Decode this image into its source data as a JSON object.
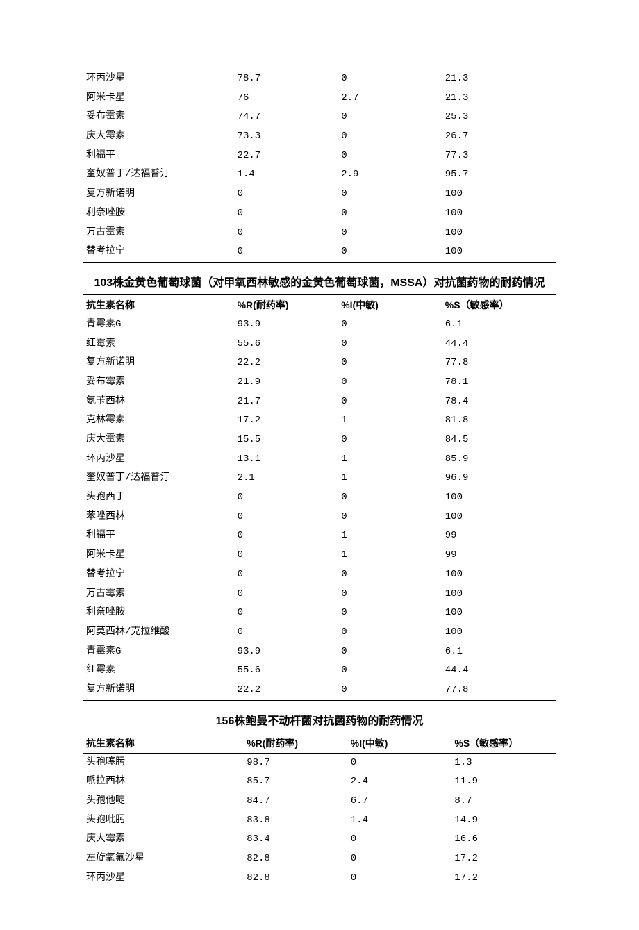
{
  "table1": {
    "rows": [
      {
        "name": "环丙沙星",
        "r": "78.7",
        "i": "0",
        "s": "21.3"
      },
      {
        "name": "阿米卡星",
        "r": "76",
        "i": "2.7",
        "s": "21.3"
      },
      {
        "name": "妥布霉素",
        "r": "74.7",
        "i": "0",
        "s": "25.3"
      },
      {
        "name": "庆大霉素",
        "r": "73.3",
        "i": "0",
        "s": "26.7"
      },
      {
        "name": "利福平",
        "r": "22.7",
        "i": "0",
        "s": "77.3"
      },
      {
        "name": "奎奴普丁/达福普汀",
        "r": "1.4",
        "i": "2.9",
        "s": "95.7"
      },
      {
        "name": "复方新诺明",
        "r": "0",
        "i": "0",
        "s": "100"
      },
      {
        "name": "利奈唑胺",
        "r": "0",
        "i": "0",
        "s": "100"
      },
      {
        "name": "万古霉素",
        "r": "0",
        "i": "0",
        "s": "100"
      },
      {
        "name": "替考拉宁",
        "r": "0",
        "i": "0",
        "s": "100"
      }
    ]
  },
  "table2": {
    "title": "103株金黄色葡萄球菌（对甲氧西林敏感的金黄色葡萄球菌，MSSA）对抗菌药物的耐药情况",
    "headers": {
      "name": "抗生素名称",
      "r": "%R(耐药率)",
      "i": "%I(中敏)",
      "s": "%S（敏感率）"
    },
    "rows": [
      {
        "name": "青霉素G",
        "r": "93.9",
        "i": "0",
        "s": "6.1"
      },
      {
        "name": "红霉素",
        "r": "55.6",
        "i": "0",
        "s": "44.4"
      },
      {
        "name": "复方新诺明",
        "r": "22.2",
        "i": "0",
        "s": "77.8"
      },
      {
        "name": "妥布霉素",
        "r": "21.9",
        "i": "0",
        "s": "78.1"
      },
      {
        "name": "氨苄西林",
        "r": "21.7",
        "i": "0",
        "s": "78.4"
      },
      {
        "name": "克林霉素",
        "r": "17.2",
        "i": "1",
        "s": "81.8"
      },
      {
        "name": "庆大霉素",
        "r": "15.5",
        "i": "0",
        "s": "84.5"
      },
      {
        "name": "环丙沙星",
        "r": "13.1",
        "i": "1",
        "s": "85.9"
      },
      {
        "name": "奎奴普丁/达福普汀",
        "r": "2.1",
        "i": "1",
        "s": "96.9"
      },
      {
        "name": "头孢西丁",
        "r": "0",
        "i": "0",
        "s": "100"
      },
      {
        "name": "苯唑西林",
        "r": "0",
        "i": "0",
        "s": "100"
      },
      {
        "name": "利福平",
        "r": "0",
        "i": "1",
        "s": "99"
      },
      {
        "name": "阿米卡星",
        "r": "0",
        "i": "1",
        "s": "99"
      },
      {
        "name": "替考拉宁",
        "r": "0",
        "i": "0",
        "s": "100"
      },
      {
        "name": "万古霉素",
        "r": "0",
        "i": "0",
        "s": "100"
      },
      {
        "name": "利奈唑胺",
        "r": "0",
        "i": "0",
        "s": "100"
      },
      {
        "name": "阿莫西林/克拉维酸",
        "r": "0",
        "i": "0",
        "s": "100"
      },
      {
        "name": "青霉素G",
        "r": "93.9",
        "i": "0",
        "s": "6.1"
      },
      {
        "name": "红霉素",
        "r": "55.6",
        "i": "0",
        "s": "44.4"
      },
      {
        "name": "复方新诺明",
        "r": "22.2",
        "i": "0",
        "s": "77.8"
      }
    ]
  },
  "table3": {
    "title": "156株鲍曼不动杆菌对抗菌药物的耐药情况",
    "headers": {
      "name": "抗生素名称",
      "r": "%R(耐药率)",
      "i": "%I(中敏)",
      "s": "%S（敏感率）"
    },
    "rows": [
      {
        "name": "头孢噻肟",
        "r": "98.7",
        "i": "0",
        "s": "1.3"
      },
      {
        "name": "哌拉西林",
        "r": "85.7",
        "i": "2.4",
        "s": "11.9"
      },
      {
        "name": "头孢他啶",
        "r": "84.7",
        "i": "6.7",
        "s": "8.7"
      },
      {
        "name": "头孢吡肟",
        "r": "83.8",
        "i": "1.4",
        "s": "14.9"
      },
      {
        "name": "庆大霉素",
        "r": "83.4",
        "i": "0",
        "s": "16.6"
      },
      {
        "name": "左旋氧氟沙星",
        "r": "82.8",
        "i": "0",
        "s": "17.2"
      },
      {
        "name": "环丙沙星",
        "r": "82.8",
        "i": "0",
        "s": "17.2"
      }
    ]
  }
}
